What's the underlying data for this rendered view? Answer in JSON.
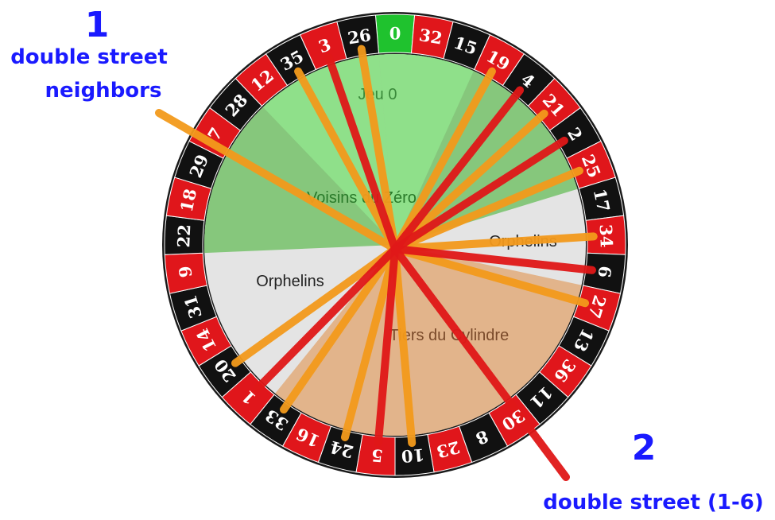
{
  "annotations": {
    "label_1": {
      "number": "1",
      "text_line_1": "double street",
      "text_line_2": "neighbors"
    },
    "label_2": {
      "number": "2",
      "text": "double street (1-6)"
    }
  },
  "sectors": {
    "jeu_zero": "Jeu 0",
    "voisins": "Voisins du Zéro",
    "orphelins_right": "Orphelins",
    "orphelins_left": "Orphelins",
    "tiers": "Tiers du Cylindre"
  },
  "wheel": {
    "pockets": [
      {
        "number": "0",
        "color": "#1fc22e"
      },
      {
        "number": "32",
        "color": "#e0161b"
      },
      {
        "number": "15",
        "color": "#111111"
      },
      {
        "number": "19",
        "color": "#e0161b"
      },
      {
        "number": "4",
        "color": "#111111"
      },
      {
        "number": "21",
        "color": "#e0161b"
      },
      {
        "number": "2",
        "color": "#111111"
      },
      {
        "number": "25",
        "color": "#e0161b"
      },
      {
        "number": "17",
        "color": "#111111"
      },
      {
        "number": "34",
        "color": "#e0161b"
      },
      {
        "number": "6",
        "color": "#111111"
      },
      {
        "number": "27",
        "color": "#e0161b"
      },
      {
        "number": "13",
        "color": "#111111"
      },
      {
        "number": "36",
        "color": "#e0161b"
      },
      {
        "number": "11",
        "color": "#111111"
      },
      {
        "number": "30",
        "color": "#e0161b"
      },
      {
        "number": "8",
        "color": "#111111"
      },
      {
        "number": "23",
        "color": "#e0161b"
      },
      {
        "number": "10",
        "color": "#111111"
      },
      {
        "number": "5",
        "color": "#e0161b"
      },
      {
        "number": "24",
        "color": "#111111"
      },
      {
        "number": "16",
        "color": "#e0161b"
      },
      {
        "number": "33",
        "color": "#111111"
      },
      {
        "number": "1",
        "color": "#e0161b"
      },
      {
        "number": "20",
        "color": "#111111"
      },
      {
        "number": "14",
        "color": "#e0161b"
      },
      {
        "number": "31",
        "color": "#111111"
      },
      {
        "number": "9",
        "color": "#e0161b"
      },
      {
        "number": "22",
        "color": "#111111"
      },
      {
        "number": "18",
        "color": "#e0161b"
      },
      {
        "number": "29",
        "color": "#111111"
      },
      {
        "number": "7",
        "color": "#e0161b"
      },
      {
        "number": "28",
        "color": "#111111"
      },
      {
        "number": "12",
        "color": "#e0161b"
      },
      {
        "number": "35",
        "color": "#111111"
      },
      {
        "number": "3",
        "color": "#e0161b"
      },
      {
        "number": "26",
        "color": "#111111"
      }
    ]
  }
}
